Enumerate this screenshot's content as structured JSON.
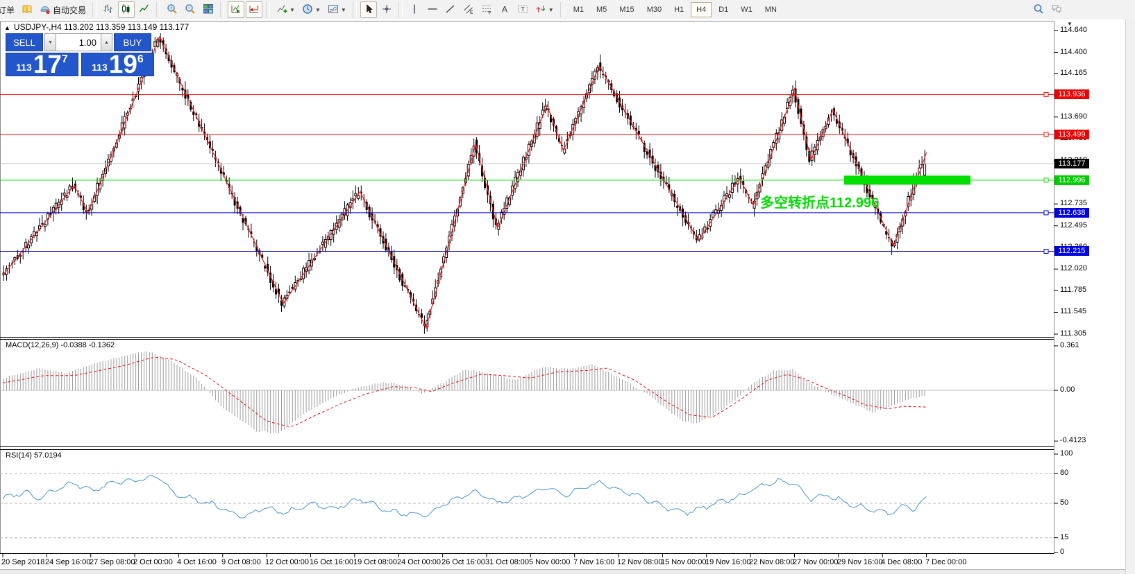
{
  "toolbar": {
    "groups": [
      {
        "items": [
          {
            "name": "new-order-button",
            "icon": "doc",
            "label": "订单",
            "clip": true
          },
          {
            "name": "market-watch-button",
            "icon": "book"
          },
          {
            "name": "autotrading-button",
            "icon": "ea",
            "label": "自动交易"
          }
        ]
      },
      {
        "items": [
          {
            "name": "bar-chart-button",
            "icon": "bars"
          },
          {
            "name": "candlestick-chart-button",
            "icon": "candles",
            "active": true
          },
          {
            "name": "line-chart-button",
            "icon": "linec"
          }
        ]
      },
      {
        "items": [
          {
            "name": "zoom-in-button",
            "icon": "zin"
          },
          {
            "name": "zoom-out-button",
            "icon": "zout"
          },
          {
            "name": "tile-windows-button",
            "icon": "tiles"
          }
        ]
      },
      {
        "items": [
          {
            "name": "auto-scroll-button",
            "icon": "ascroll",
            "active": true
          },
          {
            "name": "chart-shift-button",
            "icon": "shift",
            "active": true
          }
        ]
      },
      {
        "items": [
          {
            "name": "indicators-button",
            "icon": "indic",
            "dropdown": true
          },
          {
            "name": "periods-button",
            "icon": "clock",
            "dropdown": true
          },
          {
            "name": "templates-button",
            "icon": "tmpl",
            "dropdown": true
          }
        ]
      },
      {
        "items": [
          {
            "name": "cursor-button",
            "icon": "cursor",
            "active": true
          },
          {
            "name": "crosshair-button",
            "icon": "cross"
          }
        ]
      },
      {
        "items": [
          {
            "name": "vertical-line-button",
            "icon": "vline"
          },
          {
            "name": "horizontal-line-button",
            "icon": "hline"
          },
          {
            "name": "trendline-button",
            "icon": "tline"
          },
          {
            "name": "equidistant-channel-button",
            "icon": "channel"
          },
          {
            "name": "fibonacci-button",
            "icon": "fibo"
          },
          {
            "name": "text-button",
            "icon": "textA"
          },
          {
            "name": "text-label-button",
            "icon": "label"
          },
          {
            "name": "arrows-button",
            "icon": "arrows",
            "dropdown": true
          }
        ]
      }
    ],
    "timeframes": [
      "M1",
      "M5",
      "M15",
      "M30",
      "H1",
      "H4",
      "D1",
      "W1",
      "MN"
    ],
    "active_timeframe": "H4",
    "right_icons": [
      {
        "name": "search-icon",
        "icon": "search"
      },
      {
        "name": "chat-icon",
        "icon": "chat"
      }
    ]
  },
  "chart": {
    "title_text": "USDJPY-,H4  113.202 113.359 113.149 113.177",
    "symbol": "USDJPY-",
    "period": "H4",
    "ohlc": {
      "open": "113.202",
      "high": "113.359",
      "low": "113.149",
      "close": "113.177"
    },
    "collapse_arrow": "▲",
    "menu_arrow": "▼"
  },
  "trade_panel": {
    "sell_label": "SELL",
    "buy_label": "BUY",
    "volume": "1.00",
    "sell_price": {
      "small": "113",
      "big": "17",
      "sup": "7"
    },
    "buy_price": {
      "small": "113",
      "big": "19",
      "sup": "6"
    }
  },
  "annotation": {
    "text": "多空转折点112.996",
    "color": "#00dd00"
  },
  "price_axis": {
    "ticks": [
      "114.640",
      "114.400",
      "114.165",
      "113.930",
      "113.690",
      "113.450",
      "113.210",
      "112.975",
      "112.735",
      "112.495",
      "112.260",
      "112.020",
      "111.785",
      "111.545",
      "111.305"
    ],
    "levels": [
      {
        "price": 113.936,
        "label": "113.936",
        "bg": "#f00000",
        "line": "#ff0000",
        "marker": true
      },
      {
        "price": 113.499,
        "label": "113.499",
        "bg": "#f00000",
        "line": "#ff0000",
        "marker": true
      },
      {
        "price": 113.177,
        "label": "113.177",
        "bg": "#000000",
        "line": "#c0c0c0",
        "marker": false,
        "role": "last-price"
      },
      {
        "price": 112.996,
        "label": "112.996",
        "bg": "#00cc00",
        "line": "#00e000",
        "marker": true,
        "thick_from_bar": 306,
        "thick_to_bar": 352
      },
      {
        "price": 112.638,
        "label": "112.638",
        "bg": "#0000e0",
        "line": "#0000cc",
        "marker": true
      },
      {
        "price": 112.215,
        "label": "112.215",
        "bg": "#0000e0",
        "line": "#0000cc",
        "marker": true
      }
    ]
  },
  "time_axis": {
    "labels": [
      "20 Sep 2018",
      "24 Sep 16:00",
      "27 Sep 08:00",
      "2 Oct 00:00",
      "4 Oct 16:00",
      "9 Oct 08:00",
      "12 Oct 00:00",
      "16 Oct 16:00",
      "19 Oct 08:00",
      "24 Oct 00:00",
      "26 Oct 16:00",
      "31 Oct 08:00",
      "5 Nov 00:00",
      "7 Nov 16:00",
      "12 Nov 08:00",
      "15 Nov 00:00",
      "19 Nov 16:00",
      "22 Nov 08:00",
      "27 Nov 00:00",
      "29 Nov 16:00",
      "4 Dec 08:00",
      "7 Dec 00:00"
    ],
    "bars_per_label": 16
  },
  "chart_data": {
    "type": "candlestick",
    "title": "USDJPY- H4",
    "bars": 336,
    "price_range": [
      111.275,
      114.747
    ],
    "zigzag_series": [
      [
        0,
        111.95
      ],
      [
        26,
        112.94
      ],
      [
        31,
        112.63
      ],
      [
        57,
        114.57
      ],
      [
        102,
        111.64
      ],
      [
        130,
        112.87
      ],
      [
        154,
        111.37
      ],
      [
        172,
        113.4
      ],
      [
        180,
        112.47
      ],
      [
        198,
        113.82
      ],
      [
        204,
        113.32
      ],
      [
        217,
        114.25
      ],
      [
        253,
        112.33
      ],
      [
        268,
        113.02
      ],
      [
        273,
        112.72
      ],
      [
        288,
        114.0
      ],
      [
        294,
        113.22
      ],
      [
        302,
        113.77
      ],
      [
        324,
        112.27
      ],
      [
        336,
        113.3
      ]
    ],
    "last_candle": {
      "open": 113.05,
      "high": 113.33,
      "low": 113.0,
      "close": 113.177
    }
  },
  "macd": {
    "label": "MACD(12,26,9) -0.0388 -0.1362",
    "params": "12,26,9",
    "value": "-0.0388",
    "signal_value": "-0.1362",
    "axis": [
      {
        "v": 0.361,
        "label": "0.361"
      },
      {
        "v": 0,
        "label": "0.00"
      },
      {
        "v": -0.4123,
        "label": "-0.4123"
      }
    ],
    "hist_samples": [
      [
        0,
        0.1
      ],
      [
        13,
        0.18
      ],
      [
        22,
        0.14
      ],
      [
        40,
        0.26
      ],
      [
        52,
        0.32
      ],
      [
        60,
        0.25
      ],
      [
        70,
        0.1
      ],
      [
        80,
        -0.15
      ],
      [
        92,
        -0.33
      ],
      [
        100,
        -0.35
      ],
      [
        110,
        -0.18
      ],
      [
        120,
        -0.06
      ],
      [
        128,
        0.02
      ],
      [
        138,
        0.07
      ],
      [
        146,
        0.04
      ],
      [
        152,
        -0.03
      ],
      [
        158,
        0.04
      ],
      [
        168,
        0.17
      ],
      [
        176,
        0.14
      ],
      [
        186,
        0.08
      ],
      [
        196,
        0.19
      ],
      [
        206,
        0.17
      ],
      [
        214,
        0.21
      ],
      [
        224,
        0.1
      ],
      [
        234,
        -0.03
      ],
      [
        246,
        -0.24
      ],
      [
        252,
        -0.27
      ],
      [
        260,
        -0.17
      ],
      [
        266,
        -0.08
      ],
      [
        272,
        0.05
      ],
      [
        280,
        0.16
      ],
      [
        287,
        0.17
      ],
      [
        294,
        0.05
      ],
      [
        300,
        -0.02
      ],
      [
        308,
        -0.1
      ],
      [
        316,
        -0.18
      ],
      [
        324,
        -0.12
      ],
      [
        330,
        -0.07
      ],
      [
        336,
        -0.0388
      ]
    ],
    "signal_samples": [
      [
        0,
        0.06
      ],
      [
        15,
        0.12
      ],
      [
        26,
        0.12
      ],
      [
        44,
        0.2
      ],
      [
        55,
        0.27
      ],
      [
        63,
        0.25
      ],
      [
        74,
        0.12
      ],
      [
        86,
        -0.08
      ],
      [
        96,
        -0.25
      ],
      [
        105,
        -0.3
      ],
      [
        114,
        -0.2
      ],
      [
        124,
        -0.1
      ],
      [
        132,
        -0.03
      ],
      [
        142,
        0.03
      ],
      [
        150,
        0.02
      ],
      [
        156,
        -0.01
      ],
      [
        164,
        0.06
      ],
      [
        174,
        0.13
      ],
      [
        182,
        0.12
      ],
      [
        192,
        0.1
      ],
      [
        202,
        0.15
      ],
      [
        212,
        0.16
      ],
      [
        220,
        0.18
      ],
      [
        230,
        0.08
      ],
      [
        242,
        -0.1
      ],
      [
        250,
        -0.2
      ],
      [
        258,
        -0.22
      ],
      [
        264,
        -0.14
      ],
      [
        270,
        -0.05
      ],
      [
        278,
        0.08
      ],
      [
        285,
        0.13
      ],
      [
        292,
        0.09
      ],
      [
        298,
        0.03
      ],
      [
        306,
        -0.04
      ],
      [
        314,
        -0.12
      ],
      [
        322,
        -0.15
      ],
      [
        328,
        -0.13
      ],
      [
        336,
        -0.1362
      ]
    ]
  },
  "rsi": {
    "label": "RSI(14) 57.0194",
    "value": "57.0194",
    "axis": [
      {
        "v": 100,
        "label": "100"
      },
      {
        "v": 80,
        "label": "80",
        "dashed": true
      },
      {
        "v": 50,
        "label": "50",
        "dashed": true
      },
      {
        "v": 15,
        "label": "15",
        "dashed": true
      },
      {
        "v": 0,
        "label": "0"
      }
    ],
    "samples": [
      [
        0,
        55
      ],
      [
        8,
        62
      ],
      [
        13,
        55
      ],
      [
        20,
        65
      ],
      [
        26,
        70
      ],
      [
        33,
        63
      ],
      [
        40,
        71
      ],
      [
        50,
        74
      ],
      [
        57,
        77
      ],
      [
        62,
        60
      ],
      [
        70,
        54
      ],
      [
        78,
        47
      ],
      [
        87,
        36
      ],
      [
        95,
        45
      ],
      [
        103,
        40
      ],
      [
        112,
        50
      ],
      [
        120,
        44
      ],
      [
        130,
        54
      ],
      [
        140,
        42
      ],
      [
        154,
        37
      ],
      [
        160,
        49
      ],
      [
        168,
        58
      ],
      [
        172,
        63
      ],
      [
        180,
        50
      ],
      [
        190,
        58
      ],
      [
        198,
        66
      ],
      [
        204,
        58
      ],
      [
        210,
        64
      ],
      [
        217,
        71
      ],
      [
        224,
        64
      ],
      [
        230,
        59
      ],
      [
        240,
        47
      ],
      [
        249,
        41
      ],
      [
        255,
        46
      ],
      [
        262,
        52
      ],
      [
        268,
        57
      ],
      [
        275,
        67
      ],
      [
        283,
        73
      ],
      [
        288,
        69
      ],
      [
        294,
        54
      ],
      [
        300,
        59
      ],
      [
        308,
        49
      ],
      [
        315,
        44
      ],
      [
        322,
        39
      ],
      [
        328,
        47
      ],
      [
        332,
        44
      ],
      [
        336,
        57
      ]
    ]
  },
  "colors": {
    "bull_body": "#ffffff",
    "bear_body": "#000000",
    "wick": "#000000",
    "zigzag": "#ff2020",
    "macd_hist": "#9c9c9c",
    "macd_signal": "#ee1111",
    "rsi_line": "#4696d2",
    "panel_blue": "#2356cb",
    "annotation_green": "#00dd00"
  }
}
